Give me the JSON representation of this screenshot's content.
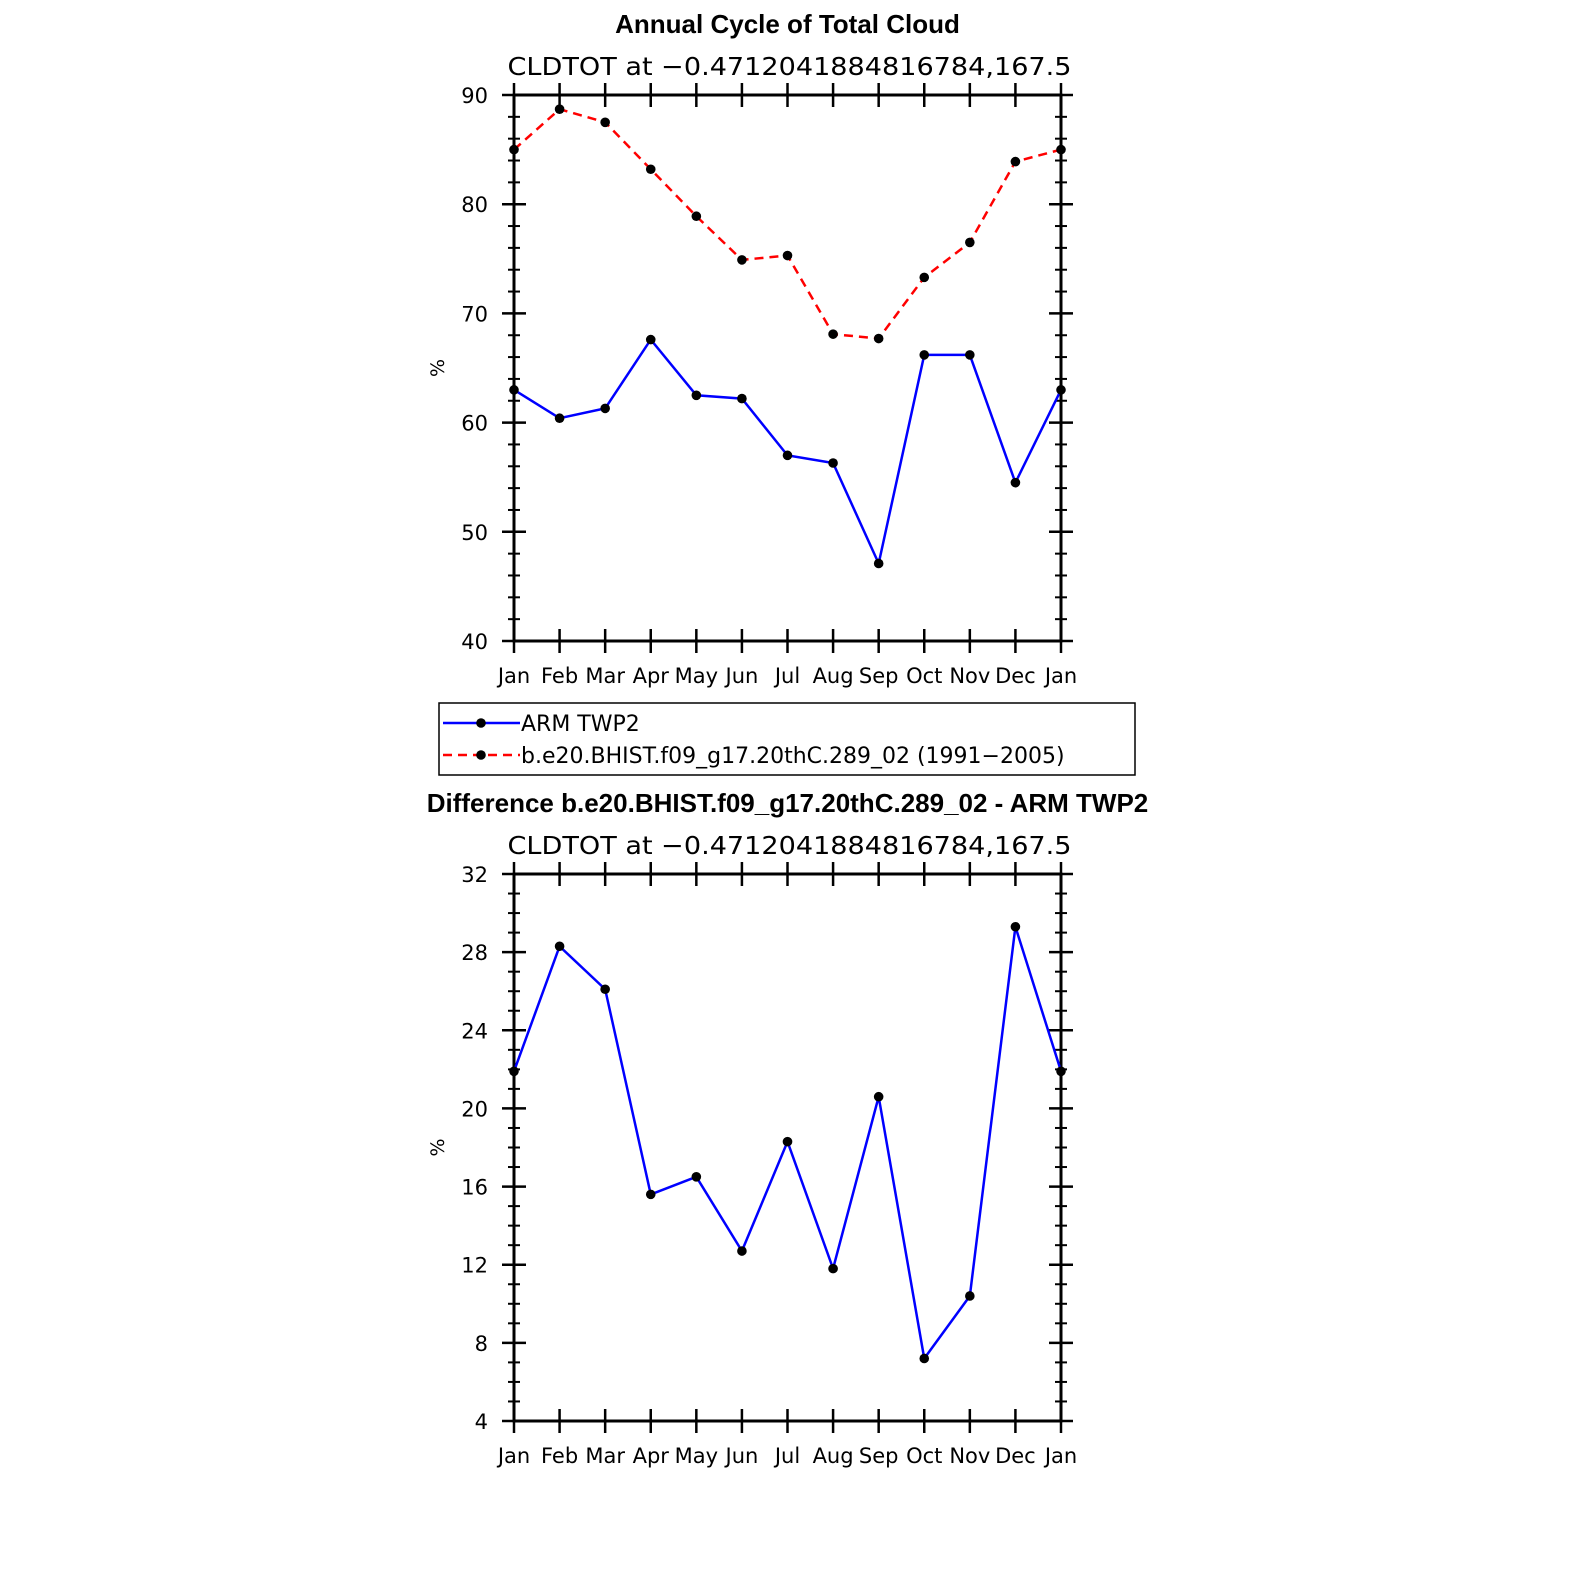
{
  "chart_data": [
    {
      "type": "line",
      "title": "Annual Cycle of Total Cloud",
      "subtitle": "CLDTOT at −0.4712041884816784,167.5",
      "xlabel": "",
      "ylabel": "%",
      "categories": [
        "Jan",
        "Feb",
        "Mar",
        "Apr",
        "May",
        "Jun",
        "Jul",
        "Aug",
        "Sep",
        "Oct",
        "Nov",
        "Dec",
        "Jan"
      ],
      "ylim": [
        40,
        90
      ],
      "yticks": [
        40,
        50,
        60,
        70,
        80,
        90
      ],
      "grid": false,
      "legend_position": "bottom",
      "series": [
        {
          "name": "ARM TWP2",
          "color": "#0000ff",
          "dash": "solid",
          "values": [
            63.0,
            60.4,
            61.3,
            67.6,
            62.5,
            62.2,
            57.0,
            56.3,
            47.1,
            66.2,
            66.2,
            54.5,
            63.0
          ]
        },
        {
          "name": "b.e20.BHIST.f09_g17.20thC.289_02 (1991−2005)",
          "color": "#ff0000",
          "dash": "dashed",
          "values": [
            85.0,
            88.7,
            87.5,
            83.2,
            78.9,
            74.9,
            75.3,
            68.1,
            67.7,
            73.3,
            76.5,
            83.9,
            85.0
          ]
        }
      ]
    },
    {
      "type": "line",
      "title": "Difference b.e20.BHIST.f09_g17.20thC.289_02 - ARM TWP2",
      "subtitle": "CLDTOT at −0.4712041884816784,167.5",
      "xlabel": "",
      "ylabel": "%",
      "categories": [
        "Jan",
        "Feb",
        "Mar",
        "Apr",
        "May",
        "Jun",
        "Jul",
        "Aug",
        "Sep",
        "Oct",
        "Nov",
        "Dec",
        "Jan"
      ],
      "ylim": [
        4,
        32
      ],
      "yticks": [
        4,
        8,
        12,
        16,
        20,
        24,
        28,
        32
      ],
      "grid": false,
      "series": [
        {
          "color": "#0000ff",
          "dash": "solid",
          "values": [
            21.9,
            28.3,
            26.1,
            15.6,
            16.5,
            12.7,
            18.3,
            11.8,
            20.6,
            7.2,
            10.4,
            29.3,
            21.9
          ]
        }
      ]
    }
  ]
}
